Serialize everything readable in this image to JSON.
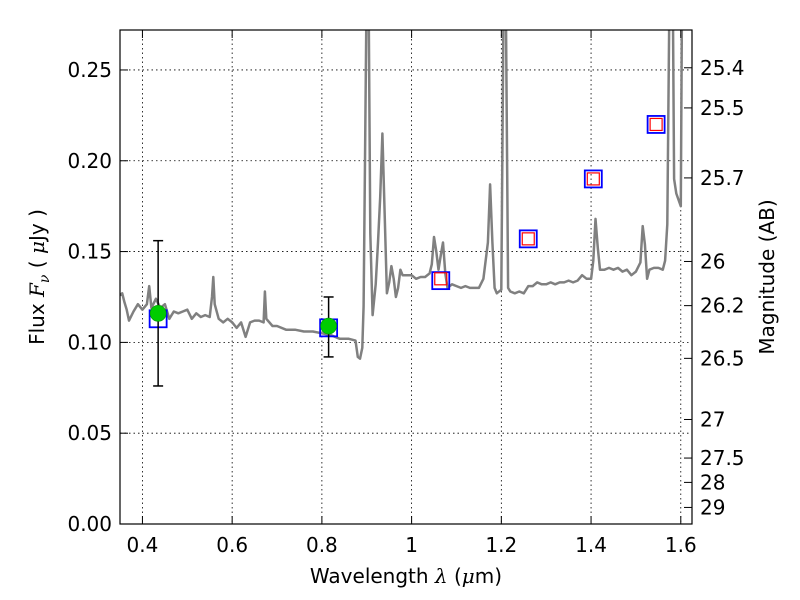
{
  "chart_data": {
    "type": "line",
    "xlabel": "Wavelength  λ (μm)",
    "ylabel": "Flux  F_ν  ( μJy )",
    "ylabel_right": "Magnitude (AB)",
    "xlim": [
      0.35,
      1.625
    ],
    "ylim": [
      0,
      0.272
    ],
    "x_ticks": [
      0.4,
      0.6,
      0.8,
      1.0,
      1.2,
      1.4,
      1.6
    ],
    "x_tick_labels": [
      "0.4",
      "0.6",
      "0.8",
      "1",
      "1.2",
      "1.4",
      "1.6"
    ],
    "y_ticks": [
      0,
      0.05,
      0.1,
      0.15,
      0.2,
      0.25
    ],
    "y_tick_labels": [
      "0.00",
      "0.05",
      "0.10",
      "0.15",
      "0.20",
      "0.25"
    ],
    "right_ticks": [
      "25.4",
      "25.5",
      "25.7",
      "26",
      "26.2",
      "26.5",
      "27",
      "27.5",
      "28",
      "29"
    ],
    "grid": true,
    "colors": {
      "spectrum": "#808080",
      "model_box": "#0000ff",
      "observed_box": "#ff0000",
      "detection": "#00cc00",
      "errorbar": "#000000"
    },
    "series": [
      {
        "kind": "spectrum",
        "points": [
          [
            0.35,
            0.126
          ],
          [
            0.355,
            0.127
          ],
          [
            0.36,
            0.122
          ],
          [
            0.365,
            0.118
          ],
          [
            0.37,
            0.112
          ],
          [
            0.38,
            0.117
          ],
          [
            0.39,
            0.121
          ],
          [
            0.4,
            0.118
          ],
          [
            0.41,
            0.121
          ],
          [
            0.415,
            0.131
          ],
          [
            0.42,
            0.119
          ],
          [
            0.43,
            0.124
          ],
          [
            0.44,
            0.119
          ],
          [
            0.45,
            0.121
          ],
          [
            0.46,
            0.113
          ],
          [
            0.47,
            0.117
          ],
          [
            0.48,
            0.116
          ],
          [
            0.49,
            0.117
          ],
          [
            0.5,
            0.118
          ],
          [
            0.51,
            0.113
          ],
          [
            0.52,
            0.116
          ],
          [
            0.53,
            0.114
          ],
          [
            0.54,
            0.115
          ],
          [
            0.55,
            0.114
          ],
          [
            0.555,
            0.125
          ],
          [
            0.558,
            0.136
          ],
          [
            0.561,
            0.121
          ],
          [
            0.57,
            0.113
          ],
          [
            0.58,
            0.111
          ],
          [
            0.59,
            0.113
          ],
          [
            0.6,
            0.111
          ],
          [
            0.61,
            0.108
          ],
          [
            0.62,
            0.111
          ],
          [
            0.63,
            0.103
          ],
          [
            0.64,
            0.111
          ],
          [
            0.65,
            0.112
          ],
          [
            0.66,
            0.112
          ],
          [
            0.67,
            0.111
          ],
          [
            0.673,
            0.128
          ],
          [
            0.676,
            0.113
          ],
          [
            0.69,
            0.109
          ],
          [
            0.7,
            0.109
          ],
          [
            0.72,
            0.107
          ],
          [
            0.74,
            0.107
          ],
          [
            0.76,
            0.106
          ],
          [
            0.78,
            0.106
          ],
          [
            0.8,
            0.105
          ],
          [
            0.82,
            0.104
          ],
          [
            0.84,
            0.102
          ],
          [
            0.86,
            0.102
          ],
          [
            0.875,
            0.101
          ],
          [
            0.88,
            0.092
          ],
          [
            0.885,
            0.091
          ],
          [
            0.89,
            0.097
          ],
          [
            0.893,
            0.12
          ],
          [
            0.896,
            0.2
          ],
          [
            0.9,
            0.3
          ],
          [
            0.904,
            0.3
          ],
          [
            0.908,
            0.16
          ],
          [
            0.913,
            0.115
          ],
          [
            0.92,
            0.132
          ],
          [
            0.925,
            0.155
          ],
          [
            0.93,
            0.18
          ],
          [
            0.935,
            0.215
          ],
          [
            0.94,
            0.17
          ],
          [
            0.945,
            0.127
          ],
          [
            0.95,
            0.133
          ],
          [
            0.955,
            0.142
          ],
          [
            0.96,
            0.135
          ],
          [
            0.965,
            0.125
          ],
          [
            0.97,
            0.13
          ],
          [
            0.975,
            0.14
          ],
          [
            0.98,
            0.137
          ],
          [
            0.99,
            0.137
          ],
          [
            1.0,
            0.137
          ],
          [
            1.01,
            0.135
          ],
          [
            1.02,
            0.136
          ],
          [
            1.03,
            0.136
          ],
          [
            1.04,
            0.138
          ],
          [
            1.045,
            0.143
          ],
          [
            1.05,
            0.158
          ],
          [
            1.055,
            0.15
          ],
          [
            1.06,
            0.14
          ],
          [
            1.065,
            0.148
          ],
          [
            1.07,
            0.155
          ],
          [
            1.075,
            0.138
          ],
          [
            1.08,
            0.13
          ],
          [
            1.09,
            0.132
          ],
          [
            1.1,
            0.131
          ],
          [
            1.11,
            0.13
          ],
          [
            1.12,
            0.131
          ],
          [
            1.13,
            0.13
          ],
          [
            1.14,
            0.13
          ],
          [
            1.15,
            0.13
          ],
          [
            1.16,
            0.135
          ],
          [
            1.17,
            0.155
          ],
          [
            1.175,
            0.187
          ],
          [
            1.18,
            0.155
          ],
          [
            1.185,
            0.13
          ],
          [
            1.19,
            0.127
          ],
          [
            1.2,
            0.129
          ],
          [
            1.205,
            0.29
          ],
          [
            1.21,
            0.29
          ],
          [
            1.215,
            0.13
          ],
          [
            1.22,
            0.128
          ],
          [
            1.23,
            0.127
          ],
          [
            1.24,
            0.128
          ],
          [
            1.25,
            0.127
          ],
          [
            1.26,
            0.131
          ],
          [
            1.27,
            0.131
          ],
          [
            1.28,
            0.133
          ],
          [
            1.29,
            0.132
          ],
          [
            1.3,
            0.132
          ],
          [
            1.31,
            0.133
          ],
          [
            1.32,
            0.132
          ],
          [
            1.33,
            0.133
          ],
          [
            1.34,
            0.133
          ],
          [
            1.35,
            0.134
          ],
          [
            1.36,
            0.133
          ],
          [
            1.37,
            0.134
          ],
          [
            1.38,
            0.137
          ],
          [
            1.39,
            0.135
          ],
          [
            1.4,
            0.135
          ],
          [
            1.405,
            0.145
          ],
          [
            1.41,
            0.168
          ],
          [
            1.415,
            0.152
          ],
          [
            1.42,
            0.14
          ],
          [
            1.43,
            0.14
          ],
          [
            1.44,
            0.141
          ],
          [
            1.45,
            0.14
          ],
          [
            1.46,
            0.141
          ],
          [
            1.47,
            0.139
          ],
          [
            1.48,
            0.14
          ],
          [
            1.49,
            0.137
          ],
          [
            1.5,
            0.139
          ],
          [
            1.51,
            0.144
          ],
          [
            1.515,
            0.164
          ],
          [
            1.52,
            0.154
          ],
          [
            1.525,
            0.135
          ],
          [
            1.53,
            0.14
          ],
          [
            1.54,
            0.141
          ],
          [
            1.55,
            0.141
          ],
          [
            1.56,
            0.14
          ],
          [
            1.565,
            0.145
          ],
          [
            1.57,
            0.165
          ],
          [
            1.575,
            0.3
          ],
          [
            1.582,
            0.3
          ],
          [
            1.585,
            0.19
          ],
          [
            1.59,
            0.182
          ],
          [
            1.6,
            0.175
          ],
          [
            1.603,
            0.3
          ],
          [
            1.625,
            0.3
          ]
        ]
      },
      {
        "kind": "model_boxes",
        "points": [
          [
            0.435,
            0.113
          ],
          [
            0.815,
            0.108
          ],
          [
            1.065,
            0.134
          ],
          [
            1.26,
            0.157
          ],
          [
            1.405,
            0.19
          ],
          [
            1.545,
            0.22
          ]
        ]
      },
      {
        "kind": "observed_boxes",
        "points": [
          [
            1.065,
            0.135
          ],
          [
            1.26,
            0.157
          ],
          [
            1.405,
            0.19
          ],
          [
            1.545,
            0.22
          ]
        ]
      },
      {
        "kind": "detections",
        "points": [
          {
            "x": 0.435,
            "y": 0.116,
            "yerr_low": 0.076,
            "yerr_high": 0.156
          },
          {
            "x": 0.815,
            "y": 0.109,
            "yerr_low": 0.092,
            "yerr_high": 0.125
          }
        ]
      }
    ]
  }
}
